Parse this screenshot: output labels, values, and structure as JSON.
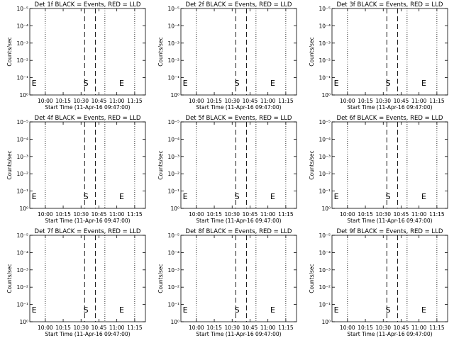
{
  "chart_data": {
    "type": "line",
    "layout": "3x3 grid of panels",
    "shared": {
      "ylabel": "Counts/sec",
      "xlabel": "Start Time (11-Apr-16 09:47:00)",
      "x_ticks": [
        "10:00",
        "10:15",
        "10:30",
        "10:45",
        "11:00",
        "11:15"
      ],
      "x_tick_minutes": [
        0,
        15,
        30,
        45,
        60,
        75
      ],
      "xlim_minutes": [
        -13,
        84
      ],
      "y_scale": "log",
      "y_ticks": [
        "10⁰",
        "10⁻¹",
        "10⁻²",
        "10⁻³",
        "10⁻⁴",
        "10⁻⁵"
      ],
      "ylim_exponents": [
        0,
        -5
      ],
      "dotted_lines_minutes": [
        0,
        50,
        75
      ],
      "dashed_lines_minutes": [
        33,
        42
      ],
      "markers": [
        {
          "label": "E",
          "minute": -12
        },
        {
          "label": "S",
          "minute": 32
        },
        {
          "label": "E",
          "minute": 62
        }
      ],
      "grid": false,
      "series": [
        {
          "name": "Events",
          "color": "#000000",
          "values": []
        },
        {
          "name": "LLD",
          "color": "#ff0000",
          "values": []
        }
      ]
    },
    "panels": [
      {
        "title": "Det 1f BLACK = Events, RED = LLD"
      },
      {
        "title": "Det 2f BLACK = Events, RED = LLD"
      },
      {
        "title": "Det 3f BLACK = Events, RED = LLD"
      },
      {
        "title": "Det 4f BLACK = Events, RED = LLD"
      },
      {
        "title": "Det 5f BLACK = Events, RED = LLD"
      },
      {
        "title": "Det 6f BLACK = Events, RED = LLD"
      },
      {
        "title": "Det 7f BLACK = Events, RED = LLD"
      },
      {
        "title": "Det 8f BLACK = Events, RED = LLD"
      },
      {
        "title": "Det 9f BLACK = Events, RED = LLD"
      }
    ]
  }
}
